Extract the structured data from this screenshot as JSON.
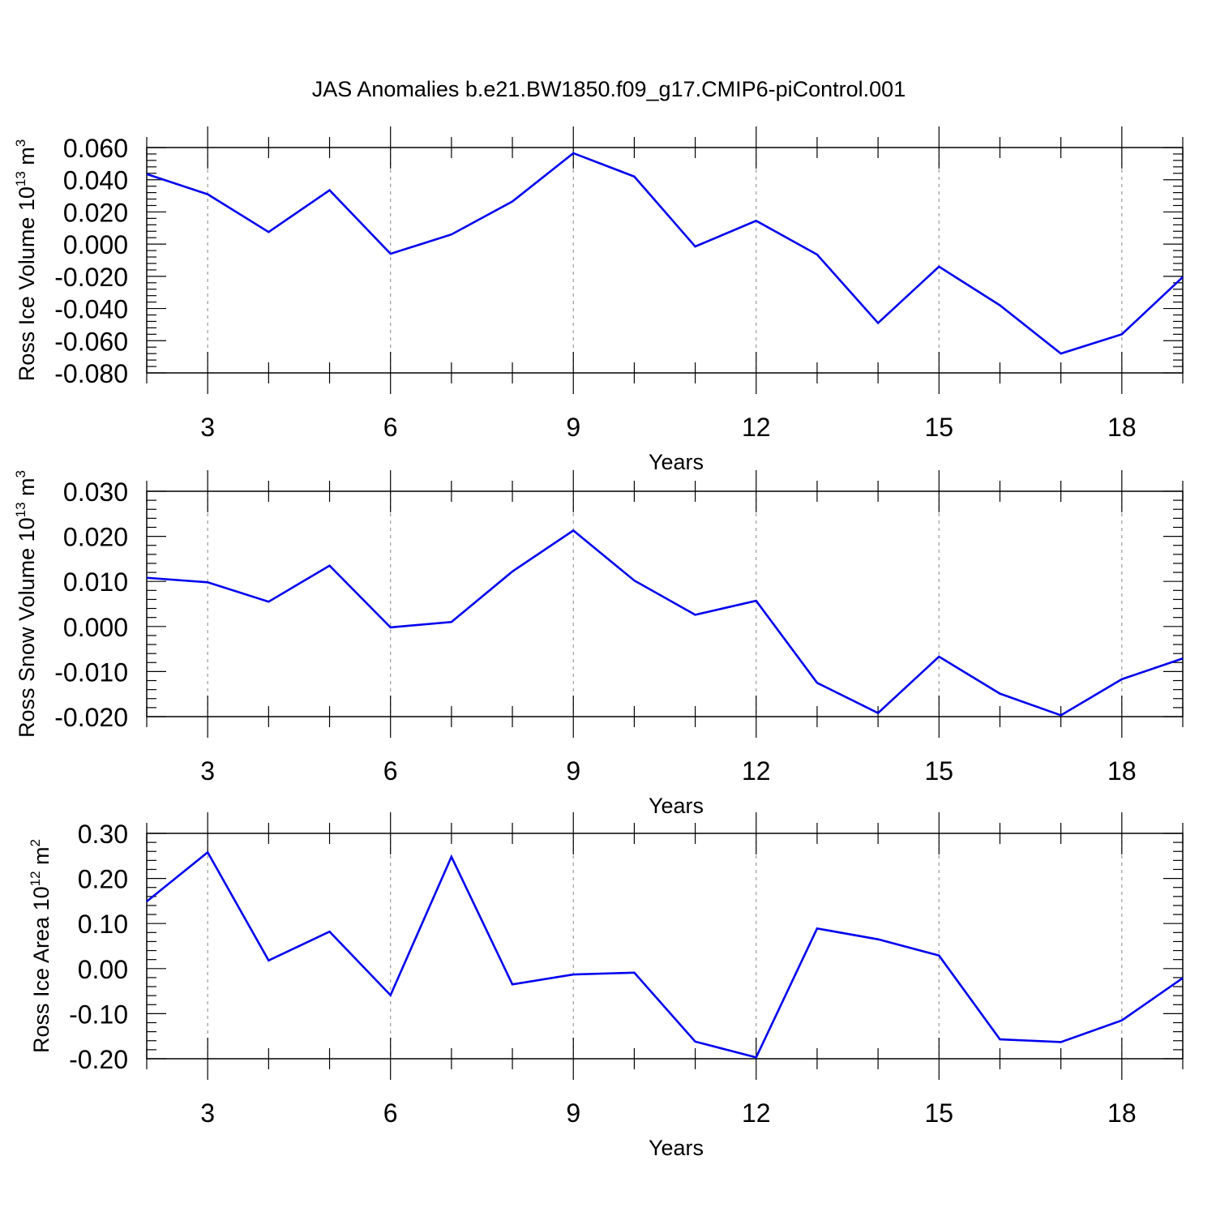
{
  "figure": {
    "title": "JAS Anomalies b.e21.BW1850.f09_g17.CMIP6-piControl.001"
  },
  "chart_data": [
    {
      "type": "line",
      "title": "",
      "xlabel": "Years",
      "ylabel": {
        "base": "Ross Ice Volume 10",
        "exponent": "13",
        "unit": " m",
        "unit_exponent": "3"
      },
      "xlim": [
        2,
        19
      ],
      "ylim": [
        -0.08,
        0.06
      ],
      "xticks": [
        3,
        6,
        9,
        12,
        15,
        18
      ],
      "xtick_labels": [
        "3",
        "6",
        "9",
        "12",
        "15",
        "18"
      ],
      "yticks": [
        0.06,
        0.04,
        0.02,
        0.0,
        -0.02,
        -0.04,
        -0.06,
        -0.08
      ],
      "ytick_labels": [
        "0.060",
        "0.040",
        "0.020",
        "0.000",
        "-0.020",
        "-0.040",
        "-0.060",
        "-0.080"
      ],
      "grid": "vertical dashed at major x ticks",
      "line_color": "#0000ee",
      "series": [
        {
          "x": [
            2,
            3,
            4,
            5,
            6,
            7,
            8,
            9,
            10,
            11,
            12,
            13,
            14,
            15,
            16,
            17,
            18,
            19
          ],
          "values": [
            0.0435,
            0.031,
            0.0075,
            0.0335,
            -0.006,
            0.006,
            0.0265,
            0.0565,
            0.042,
            -0.0015,
            0.0145,
            -0.0065,
            -0.049,
            -0.014,
            -0.038,
            -0.068,
            -0.056,
            -0.0205
          ]
        }
      ]
    },
    {
      "type": "line",
      "title": "",
      "xlabel": "Years",
      "ylabel": {
        "base": "Ross Snow Volume 10",
        "exponent": "13",
        "unit": " m",
        "unit_exponent": "3"
      },
      "xlim": [
        2,
        19
      ],
      "ylim": [
        -0.02,
        0.03
      ],
      "xticks": [
        3,
        6,
        9,
        12,
        15,
        18
      ],
      "xtick_labels": [
        "3",
        "6",
        "9",
        "12",
        "15",
        "18"
      ],
      "yticks": [
        0.03,
        0.02,
        0.01,
        0.0,
        -0.01,
        -0.02
      ],
      "ytick_labels": [
        "0.030",
        "0.020",
        "0.010",
        "0.000",
        "-0.010",
        "-0.020"
      ],
      "grid": "vertical dashed at major x ticks",
      "line_color": "#0000ee",
      "series": [
        {
          "x": [
            2,
            3,
            4,
            5,
            6,
            7,
            8,
            9,
            10,
            11,
            12,
            13,
            14,
            15,
            16,
            17,
            18,
            19
          ],
          "values": [
            0.0108,
            0.0098,
            0.0055,
            0.0135,
            -0.0002,
            0.001,
            0.0122,
            0.0213,
            0.0102,
            0.0026,
            0.0057,
            -0.0125,
            -0.0192,
            -0.0067,
            -0.0149,
            -0.0197,
            -0.0117,
            -0.0071
          ]
        }
      ]
    },
    {
      "type": "line",
      "title": "",
      "xlabel": "Years",
      "ylabel": {
        "base": "Ross Ice Area 10",
        "exponent": "12",
        "unit": " m",
        "unit_exponent": "2"
      },
      "xlim": [
        2,
        19
      ],
      "ylim": [
        -0.2,
        0.3
      ],
      "xticks": [
        3,
        6,
        9,
        12,
        15,
        18
      ],
      "xtick_labels": [
        "3",
        "6",
        "9",
        "12",
        "15",
        "18"
      ],
      "yticks": [
        0.3,
        0.2,
        0.1,
        0.0,
        -0.1,
        -0.2
      ],
      "ytick_labels": [
        "0.30",
        "0.20",
        "0.10",
        "0.00",
        "-0.10",
        "-0.20"
      ],
      "grid": "vertical dashed at major x ticks",
      "line_color": "#0000ee",
      "series": [
        {
          "x": [
            2,
            3,
            4,
            5,
            6,
            7,
            8,
            9,
            10,
            11,
            12,
            13,
            14,
            15,
            16,
            17,
            18,
            19
          ],
          "values": [
            0.149,
            0.258,
            0.018,
            0.082,
            -0.059,
            0.248,
            -0.035,
            -0.013,
            -0.009,
            -0.162,
            -0.197,
            0.089,
            0.065,
            0.029,
            -0.157,
            -0.163,
            -0.115,
            -0.021
          ]
        }
      ]
    }
  ]
}
